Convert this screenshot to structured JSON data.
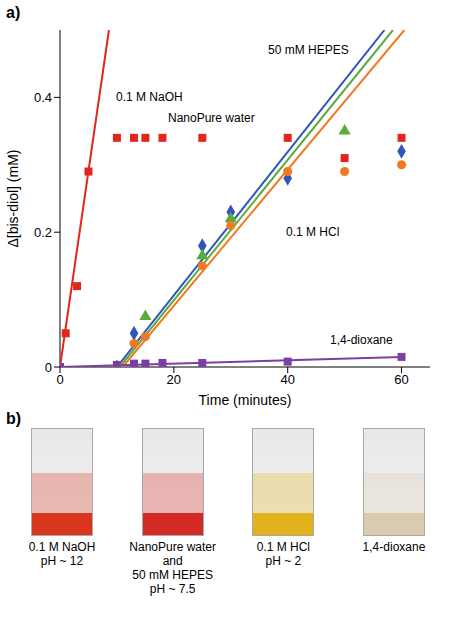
{
  "chart_data": {
    "type": "scatter",
    "panel": "a)",
    "x_label": "Time (minutes)",
    "y_label": "Δ[bis-diol] (mM)",
    "xlim": [
      0,
      65
    ],
    "xticks": [
      0,
      20,
      40,
      60
    ],
    "ylim": [
      0,
      0.5
    ],
    "yticks": [
      0,
      0.2,
      0.4
    ],
    "grid": false,
    "series": [
      {
        "name": "0.1 M NaOH",
        "color": "#e3261c",
        "marker": "square",
        "x": [
          0,
          1,
          3,
          5,
          10,
          13,
          15,
          18,
          25,
          40,
          50,
          60
        ],
        "values": [
          0,
          0.05,
          0.12,
          0.29,
          0.34,
          0.34,
          0.34,
          0.34,
          0.34,
          0.34,
          0.31,
          0.34
        ],
        "fit": {
          "x": [
            0,
            8.6
          ],
          "values": [
            0,
            0.5
          ]
        }
      },
      {
        "name": "50 mM HEPES",
        "color": "#2f55b8",
        "marker": "diamond",
        "x": [
          10,
          13,
          25,
          30,
          40,
          60
        ],
        "values": [
          0,
          0.05,
          0.18,
          0.23,
          0.28,
          0.32
        ],
        "fit": {
          "x": [
            10,
            57
          ],
          "values": [
            0,
            0.5
          ]
        }
      },
      {
        "name": "NanoPure water",
        "color": "#5aab3c",
        "marker": "triangle",
        "x": [
          10,
          15,
          25,
          30,
          50
        ],
        "values": [
          0,
          0.075,
          0.165,
          0.22,
          0.35
        ],
        "fit": {
          "x": [
            10.5,
            58.5
          ],
          "values": [
            0,
            0.5
          ]
        }
      },
      {
        "name": "0.1 M HCl",
        "color": "#f07a22",
        "marker": "circle",
        "x": [
          10,
          13,
          15,
          25,
          30,
          40,
          50,
          60
        ],
        "values": [
          0,
          0.035,
          0.045,
          0.15,
          0.21,
          0.29,
          0.29,
          0.3
        ],
        "fit": {
          "x": [
            11,
            60.5
          ],
          "values": [
            0,
            0.5
          ]
        }
      },
      {
        "name": "1,4-dioxane",
        "color": "#7b3fa3",
        "marker": "square",
        "x": [
          0,
          10,
          13,
          15,
          18,
          25,
          40,
          60
        ],
        "values": [
          0,
          0.003,
          0.005,
          0.005,
          0.006,
          0.006,
          0.008,
          0.015
        ],
        "fit": {
          "x": [
            0,
            60
          ],
          "values": [
            0,
            0.015
          ]
        }
      }
    ]
  },
  "panel_b": {
    "label": "b)",
    "samples": [
      {
        "caption": [
          "0.1 M NaOH",
          "pH ~ 12"
        ],
        "color": "#d8361f"
      },
      {
        "caption": [
          "NanoPure water",
          "and",
          "50 mM HEPES",
          "pH ~ 7.5"
        ],
        "color": "#d42a26"
      },
      {
        "caption": [
          "0.1 M HCl",
          "pH ~ 2"
        ],
        "color": "#e2b21c"
      },
      {
        "caption": [
          "1,4-dioxane"
        ],
        "color": "#d9ccae"
      }
    ]
  }
}
